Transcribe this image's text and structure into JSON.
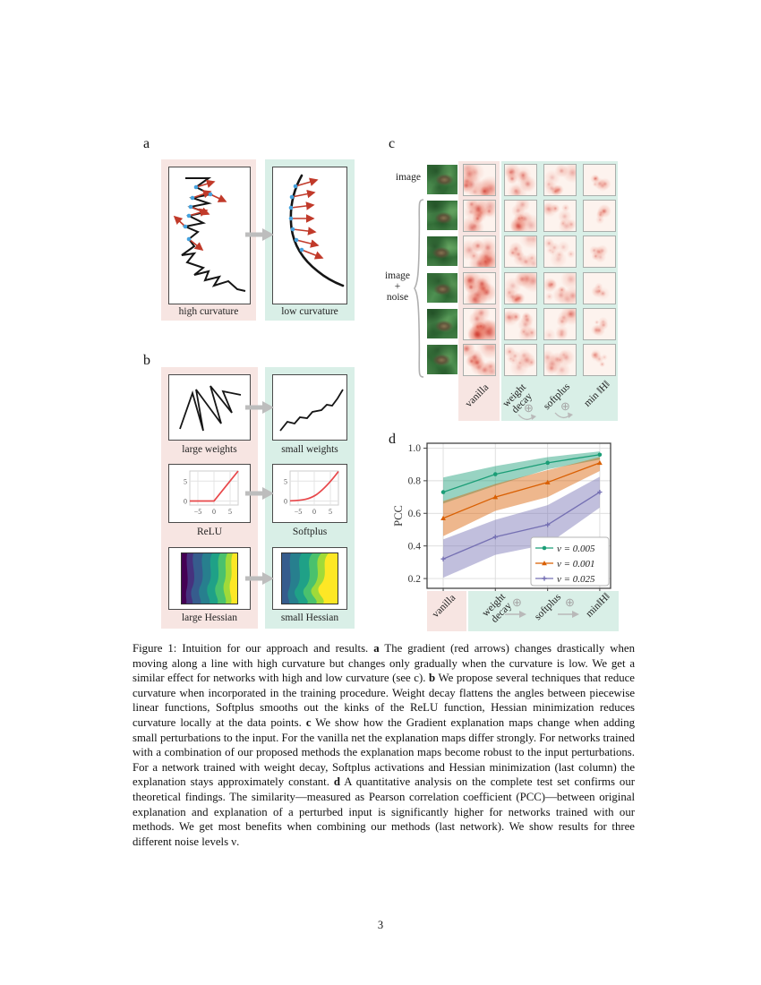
{
  "page": {
    "number": "3"
  },
  "figure": {
    "panel_a": {
      "label": "a",
      "left_caption": "high curvature",
      "right_caption": "low curvature"
    },
    "panel_b": {
      "label": "b",
      "rows": [
        {
          "left_caption": "large weights",
          "right_caption": "small weights"
        },
        {
          "left_caption": "ReLU",
          "right_caption": "Softplus"
        },
        {
          "left_caption": "large Hessian",
          "right_caption": "small Hessian"
        }
      ],
      "mini_plot": {
        "y_ticks": [
          "5",
          "0"
        ],
        "x_ticks": [
          "−5",
          "0",
          "5"
        ]
      }
    },
    "panel_c": {
      "label": "c",
      "row_label_top": "image",
      "group_label": "image\n+\nnoise",
      "noise_rows": 5,
      "columns": [
        "vanilla",
        "weight\ndecay",
        "softplus",
        "min ‖H‖"
      ],
      "combine_symbol": "⊕"
    },
    "panel_d": {
      "label": "d",
      "columns": [
        "vanilla",
        "weight\ndecay",
        "softplus",
        "min‖H‖"
      ],
      "combine_symbol": "⊕"
    }
  },
  "chart_data": {
    "type": "line",
    "title": "",
    "xlabel": "",
    "ylabel": "PCC",
    "categories": [
      "vanilla",
      "weight decay",
      "softplus",
      "min ‖H‖"
    ],
    "ylim": [
      0.14,
      1.03
    ],
    "yticks": [
      0.2,
      0.4,
      0.6,
      0.8,
      1.0
    ],
    "grid": true,
    "legend_position": "lower right",
    "series": [
      {
        "name": "ν = 0.005",
        "color": "#1b9e77",
        "marker": "circle",
        "values": [
          0.73,
          0.84,
          0.91,
          0.96
        ],
        "band_low": [
          0.66,
          0.77,
          0.87,
          0.93
        ],
        "band_high": [
          0.82,
          0.89,
          0.945,
          0.98
        ]
      },
      {
        "name": "ν = 0.001",
        "color": "#d95f02",
        "marker": "triangle",
        "values": [
          0.57,
          0.7,
          0.79,
          0.91
        ],
        "band_low": [
          0.46,
          0.615,
          0.7,
          0.86
        ],
        "band_high": [
          0.675,
          0.78,
          0.865,
          0.945
        ]
      },
      {
        "name": "ν = 0.025",
        "color": "#7570b3",
        "marker": "plus",
        "values": [
          0.32,
          0.455,
          0.53,
          0.73
        ],
        "band_low": [
          0.205,
          0.345,
          0.41,
          0.635
        ],
        "band_high": [
          0.44,
          0.56,
          0.65,
          0.825
        ]
      }
    ]
  },
  "caption": {
    "segments": [
      {
        "text": "Figure 1: Intuition for our approach and results. ",
        "bold": false
      },
      {
        "text": "a",
        "bold": true
      },
      {
        "text": " The gradient (red arrows) changes drastically when moving along a line with high curvature but changes only gradually when the curvature is low. We get a similar effect for networks with high and low curvature (see c). ",
        "bold": false
      },
      {
        "text": "b",
        "bold": true
      },
      {
        "text": " We propose several techniques that reduce curvature when incorporated in the training procedure. Weight decay flattens the angles between piecewise linear functions, Softplus smooths out the kinks of the ReLU function, Hessian minimization reduces curvature locally at the data points. ",
        "bold": false
      },
      {
        "text": "c",
        "bold": true
      },
      {
        "text": " We show how the Gradient explanation maps change when adding small perturbations to the input. For the vanilla net the explanation maps differ strongly. For networks trained with a combination of our proposed methods the explanation maps become robust to the input perturbations. For a network trained with weight decay, Softplus activations and Hessian minimization (last column) the explanation stays approximately constant. ",
        "bold": false
      },
      {
        "text": "d",
        "bold": true
      },
      {
        "text": " A quantitative analysis on the complete test set confirms our theoretical findings. The similarity—measured as Pearson correlation coefficient (PCC)—between original explanation and explanation of a perturbed input is significantly higher for networks trained with our methods. We get most benefits when combining our methods (last network). We show results for three different noise levels ν.",
        "bold": false
      }
    ]
  },
  "colors": {
    "panel_pink": "#f7e5e2",
    "panel_mint": "#d9efe7",
    "arrow_red": "#c13a2a",
    "dot_blue": "#45a1dd",
    "gray_arrow": "#bdbdbd",
    "heatmap_red": "#c62117"
  }
}
